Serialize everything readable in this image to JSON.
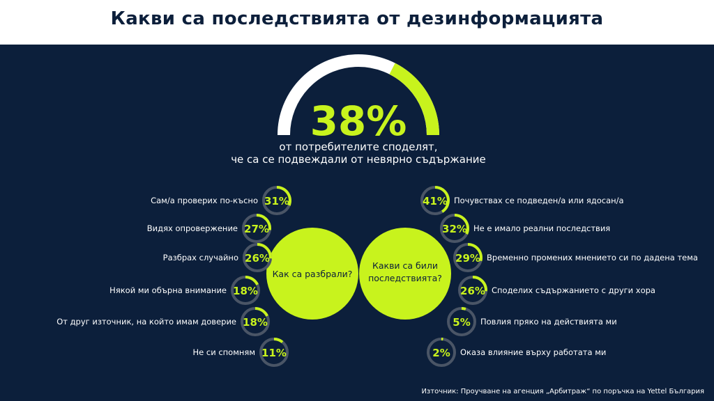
{
  "header": {
    "title": "Какви са последствията от дезинформацията"
  },
  "colors": {
    "background": "#0c1f3b",
    "accent": "#c8f31d",
    "ring_track": "#4a5566",
    "text": "#ffffff"
  },
  "chart_data": [
    {
      "type": "gauge",
      "value": 38,
      "label": "38%",
      "caption_line1": "от потребителите споделят,",
      "caption_line2": "че са се подвеждали от невярно съдържание"
    },
    {
      "type": "donut",
      "title": "Как са разбрали?",
      "items": [
        {
          "label": "Сам/а проверих по-късно",
          "value": 31,
          "display": "31%"
        },
        {
          "label": "Видях опровержение",
          "value": 27,
          "display": "27%"
        },
        {
          "label": "Разбрах случайно",
          "value": 26,
          "display": "26%"
        },
        {
          "label": "Някой ми обърна внимание",
          "value": 18,
          "display": "18%"
        },
        {
          "label": "От друг източник, на който имам доверие",
          "value": 18,
          "display": "18%"
        },
        {
          "label": "Не си спомням",
          "value": 11,
          "display": "11%"
        }
      ]
    },
    {
      "type": "donut",
      "title_line1": "Какви са били",
      "title_line2": "последствията?",
      "items": [
        {
          "label": "Почувствах се подведен/а или ядосан/а",
          "value": 41,
          "display": "41%"
        },
        {
          "label": "Не е имало реални последствия",
          "value": 32,
          "display": "32%"
        },
        {
          "label": "Временно промених мнението си по дадена тема",
          "value": 29,
          "display": "29%"
        },
        {
          "label": "Споделих съдържанието с други хора",
          "value": 26,
          "display": "26%"
        },
        {
          "label": "Повлия пряко на действията ми",
          "value": 5,
          "display": "5%"
        },
        {
          "label": "Оказа влияние върху работата ми",
          "value": 2,
          "display": "2%"
        }
      ]
    }
  ],
  "footer": {
    "source": "Източник: Проучване на агенция „Арбитраж“ по поръчка на Yettel България"
  }
}
